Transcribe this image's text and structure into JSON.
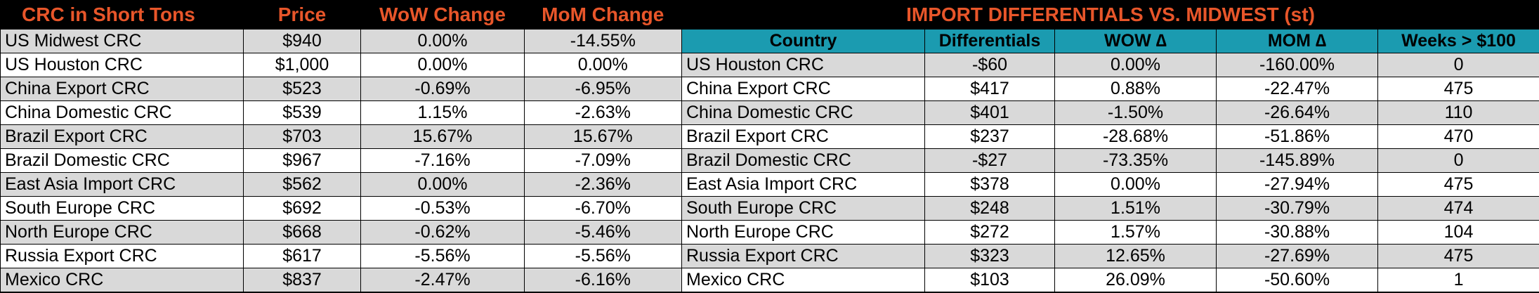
{
  "left": {
    "headers": [
      "CRC in Short Tons",
      "Price",
      "WoW Change",
      "MoM Change"
    ],
    "rows": [
      {
        "name": "US Midwest CRC",
        "price": "$940",
        "wow": "0.00%",
        "mom": "-14.55%"
      },
      {
        "name": "US Houston CRC",
        "price": "$1,000",
        "wow": "0.00%",
        "mom": "0.00%"
      },
      {
        "name": "China Export CRC",
        "price": "$523",
        "wow": "-0.69%",
        "mom": "-6.95%"
      },
      {
        "name": "China Domestic CRC",
        "price": "$539",
        "wow": "1.15%",
        "mom": "-2.63%"
      },
      {
        "name": "Brazil Export CRC",
        "price": "$703",
        "wow": "15.67%",
        "mom": "15.67%"
      },
      {
        "name": "Brazil Domestic CRC",
        "price": "$967",
        "wow": "-7.16%",
        "mom": "-7.09%"
      },
      {
        "name": "East Asia Import CRC",
        "price": "$562",
        "wow": "0.00%",
        "mom": "-2.36%"
      },
      {
        "name": "South Europe CRC",
        "price": "$692",
        "wow": "-0.53%",
        "mom": "-6.70%"
      },
      {
        "name": "North Europe CRC",
        "price": "$668",
        "wow": "-0.62%",
        "mom": "-5.46%"
      },
      {
        "name": "Russia Export CRC",
        "price": "$617",
        "wow": "-5.56%",
        "mom": "-5.56%"
      },
      {
        "name": "Mexico CRC",
        "price": "$837",
        "wow": "-2.47%",
        "mom": "-6.16%"
      }
    ]
  },
  "right": {
    "title": "IMPORT DIFFERENTIALS VS. MIDWEST (st)",
    "headers": [
      "Country",
      "Differentials",
      "WOW ∆",
      "MOM ∆",
      "Weeks > $100"
    ],
    "rows": [
      {
        "name": "US Houston CRC",
        "diff": "-$60",
        "wow": "0.00%",
        "mom": "-160.00%",
        "weeks": "0"
      },
      {
        "name": "China Export CRC",
        "diff": "$417",
        "wow": "0.88%",
        "mom": "-22.47%",
        "weeks": "475"
      },
      {
        "name": "China Domestic CRC",
        "diff": "$401",
        "wow": "-1.50%",
        "mom": "-26.64%",
        "weeks": "110"
      },
      {
        "name": "Brazil Export CRC",
        "diff": "$237",
        "wow": "-28.68%",
        "mom": "-51.86%",
        "weeks": "470"
      },
      {
        "name": "Brazil Domestic CRC",
        "diff": "-$27",
        "wow": "-73.35%",
        "mom": "-145.89%",
        "weeks": "0"
      },
      {
        "name": "East Asia Import CRC",
        "diff": "$378",
        "wow": "0.00%",
        "mom": "-27.94%",
        "weeks": "475"
      },
      {
        "name": "South Europe CRC",
        "diff": "$248",
        "wow": "1.51%",
        "mom": "-30.79%",
        "weeks": "474"
      },
      {
        "name": "North Europe CRC",
        "diff": "$272",
        "wow": "1.57%",
        "mom": "-30.88%",
        "weeks": "104"
      },
      {
        "name": "Russia Export CRC",
        "diff": "$323",
        "wow": "12.65%",
        "mom": "-27.69%",
        "weeks": "475"
      },
      {
        "name": "Mexico CRC",
        "diff": "$103",
        "wow": "26.09%",
        "mom": "-50.60%",
        "weeks": "1"
      }
    ]
  },
  "colors": {
    "title_text": "#e8562a",
    "title_bg": "#000000",
    "header_bg": "#1b9bb0",
    "shade_row": "#d9d9d9"
  }
}
